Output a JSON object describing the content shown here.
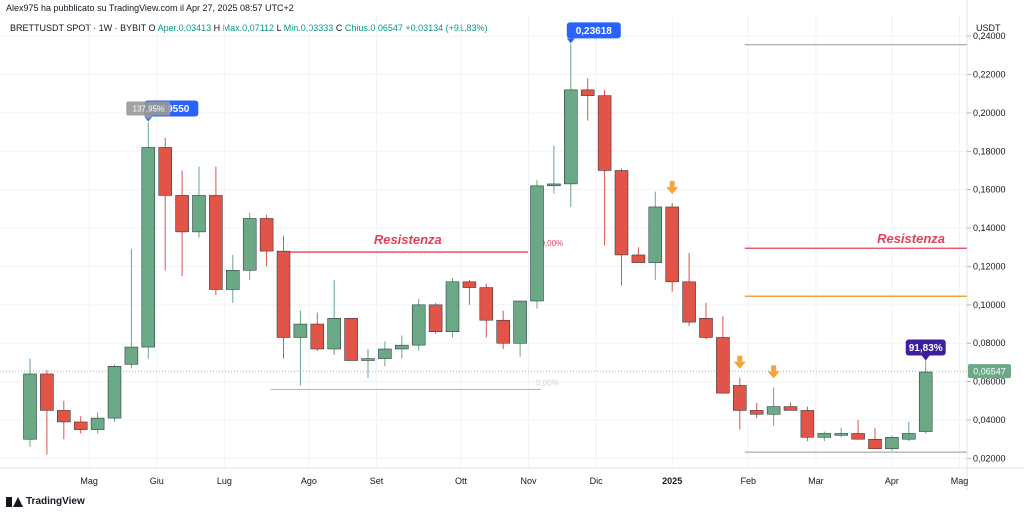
{
  "header": {
    "published_by": "Alex975 ha pubblicato su TradingView.com il Apr 27, 2025 08:57 UTC+2"
  },
  "symbol": {
    "name": "BRETTUSDT SPOT · 1W · BYBIT",
    "open_label": "O",
    "open": "Aper.0,03413",
    "high_label": "H",
    "high": "Max.0,07112",
    "low_label": "L",
    "low": "Min.0,03333",
    "close_label": "C",
    "close": "Chius.0,06547",
    "change": "+0,03134 (+91,83%)"
  },
  "brand": {
    "name": "TradingView",
    "icon": "tradingview-logo-icon"
  },
  "chart_data": {
    "type": "candlestick",
    "currency": "USDT",
    "ylim": [
      0.015,
      0.251
    ],
    "y_ticks": [
      "0,24000",
      "0,22000",
      "0,20000",
      "0,18000",
      "0,16000",
      "0,14000",
      "0,12000",
      "0,10000",
      "0,08000",
      "0,06000",
      "0,04000",
      "0,02000"
    ],
    "y_tick_values": [
      0.24,
      0.22,
      0.2,
      0.18,
      0.16,
      0.14,
      0.12,
      0.1,
      0.08,
      0.06,
      0.04,
      0.02
    ],
    "x_labels": [
      {
        "label": "Mag",
        "index": 3.5
      },
      {
        "label": "Giu",
        "index": 7.5
      },
      {
        "label": "Lug",
        "index": 11.5
      },
      {
        "label": "Ago",
        "index": 16.5
      },
      {
        "label": "Set",
        "index": 20.5
      },
      {
        "label": "Ott",
        "index": 25.5
      },
      {
        "label": "Nov",
        "index": 29.5
      },
      {
        "label": "Dic",
        "index": 33.5
      },
      {
        "label": "2025",
        "index": 38
      },
      {
        "label": "Feb",
        "index": 42.5
      },
      {
        "label": "Mar",
        "index": 46.5
      },
      {
        "label": "Apr",
        "index": 51
      },
      {
        "label": "Mag",
        "index": 55
      }
    ],
    "candles": [
      {
        "o": 0.03,
        "h": 0.072,
        "l": 0.026,
        "c": 0.064
      },
      {
        "o": 0.064,
        "h": 0.066,
        "l": 0.022,
        "c": 0.045
      },
      {
        "o": 0.045,
        "h": 0.05,
        "l": 0.03,
        "c": 0.039
      },
      {
        "o": 0.039,
        "h": 0.042,
        "l": 0.033,
        "c": 0.035
      },
      {
        "o": 0.035,
        "h": 0.044,
        "l": 0.033,
        "c": 0.041
      },
      {
        "o": 0.041,
        "h": 0.069,
        "l": 0.039,
        "c": 0.068
      },
      {
        "o": 0.069,
        "h": 0.129,
        "l": 0.067,
        "c": 0.078
      },
      {
        "o": 0.078,
        "h": 0.195,
        "l": 0.072,
        "c": 0.182
      },
      {
        "o": 0.182,
        "h": 0.187,
        "l": 0.118,
        "c": 0.157
      },
      {
        "o": 0.157,
        "h": 0.17,
        "l": 0.115,
        "c": 0.138
      },
      {
        "o": 0.138,
        "h": 0.172,
        "l": 0.135,
        "c": 0.157
      },
      {
        "o": 0.157,
        "h": 0.172,
        "l": 0.105,
        "c": 0.108
      },
      {
        "o": 0.108,
        "h": 0.126,
        "l": 0.101,
        "c": 0.118
      },
      {
        "o": 0.118,
        "h": 0.148,
        "l": 0.113,
        "c": 0.145
      },
      {
        "o": 0.145,
        "h": 0.147,
        "l": 0.12,
        "c": 0.128
      },
      {
        "o": 0.128,
        "h": 0.136,
        "l": 0.072,
        "c": 0.083
      },
      {
        "o": 0.083,
        "h": 0.097,
        "l": 0.058,
        "c": 0.09
      },
      {
        "o": 0.09,
        "h": 0.096,
        "l": 0.076,
        "c": 0.077
      },
      {
        "o": 0.077,
        "h": 0.113,
        "l": 0.074,
        "c": 0.093
      },
      {
        "o": 0.093,
        "h": 0.093,
        "l": 0.071,
        "c": 0.071
      },
      {
        "o": 0.071,
        "h": 0.077,
        "l": 0.062,
        "c": 0.072
      },
      {
        "o": 0.072,
        "h": 0.081,
        "l": 0.068,
        "c": 0.077
      },
      {
        "o": 0.077,
        "h": 0.084,
        "l": 0.072,
        "c": 0.079
      },
      {
        "o": 0.079,
        "h": 0.103,
        "l": 0.076,
        "c": 0.1
      },
      {
        "o": 0.1,
        "h": 0.101,
        "l": 0.085,
        "c": 0.086
      },
      {
        "o": 0.086,
        "h": 0.114,
        "l": 0.083,
        "c": 0.112
      },
      {
        "o": 0.112,
        "h": 0.113,
        "l": 0.1,
        "c": 0.109
      },
      {
        "o": 0.109,
        "h": 0.111,
        "l": 0.083,
        "c": 0.092
      },
      {
        "o": 0.092,
        "h": 0.097,
        "l": 0.077,
        "c": 0.08
      },
      {
        "o": 0.08,
        "h": 0.102,
        "l": 0.073,
        "c": 0.102
      },
      {
        "o": 0.102,
        "h": 0.165,
        "l": 0.098,
        "c": 0.162
      },
      {
        "o": 0.162,
        "h": 0.183,
        "l": 0.158,
        "c": 0.163
      },
      {
        "o": 0.163,
        "h": 0.236,
        "l": 0.151,
        "c": 0.212
      },
      {
        "o": 0.212,
        "h": 0.218,
        "l": 0.196,
        "c": 0.209
      },
      {
        "o": 0.209,
        "h": 0.212,
        "l": 0.131,
        "c": 0.17
      },
      {
        "o": 0.17,
        "h": 0.171,
        "l": 0.11,
        "c": 0.126
      },
      {
        "o": 0.126,
        "h": 0.13,
        "l": 0.122,
        "c": 0.122
      },
      {
        "o": 0.122,
        "h": 0.159,
        "l": 0.113,
        "c": 0.151
      },
      {
        "o": 0.151,
        "h": 0.153,
        "l": 0.107,
        "c": 0.112
      },
      {
        "o": 0.112,
        "h": 0.127,
        "l": 0.089,
        "c": 0.091
      },
      {
        "o": 0.093,
        "h": 0.101,
        "l": 0.082,
        "c": 0.083
      },
      {
        "o": 0.083,
        "h": 0.094,
        "l": 0.056,
        "c": 0.054
      },
      {
        "o": 0.058,
        "h": 0.062,
        "l": 0.035,
        "c": 0.045
      },
      {
        "o": 0.045,
        "h": 0.049,
        "l": 0.041,
        "c": 0.043
      },
      {
        "o": 0.043,
        "h": 0.057,
        "l": 0.037,
        "c": 0.047
      },
      {
        "o": 0.047,
        "h": 0.049,
        "l": 0.045,
        "c": 0.045
      },
      {
        "o": 0.045,
        "h": 0.047,
        "l": 0.029,
        "c": 0.031
      },
      {
        "o": 0.031,
        "h": 0.034,
        "l": 0.029,
        "c": 0.033
      },
      {
        "o": 0.032,
        "h": 0.036,
        "l": 0.031,
        "c": 0.033
      },
      {
        "o": 0.033,
        "h": 0.04,
        "l": 0.03,
        "c": 0.03
      },
      {
        "o": 0.03,
        "h": 0.036,
        "l": 0.025,
        "c": 0.025
      },
      {
        "o": 0.025,
        "h": 0.032,
        "l": 0.024,
        "c": 0.031
      },
      {
        "o": 0.03,
        "h": 0.039,
        "l": 0.029,
        "c": 0.033
      },
      {
        "o": 0.034,
        "h": 0.071,
        "l": 0.033,
        "c": 0.065
      }
    ],
    "annotations": {
      "high_june": {
        "text": "0,19550",
        "price": 0.1955,
        "index": 7
      },
      "pct_june": {
        "text": "137,95%",
        "index": 7
      },
      "high_nov": {
        "text": "0,23618",
        "price": 0.2362,
        "index": 32
      },
      "pct_latest": {
        "text": "91,83%",
        "index": 53
      },
      "last_price": {
        "text": "0,06547",
        "price": 0.06547
      },
      "fib_50": {
        "text": "50,00%"
      },
      "fib_0": {
        "text": "0,00%"
      },
      "resistance_1": {
        "text": "Resistenza",
        "price": 0.1275
      },
      "resistance_2": {
        "text": "Resistenza",
        "price": 0.1295
      },
      "support_orange_price": 0.1045,
      "top_line_price": 0.2355,
      "low_line_price": 0.0233,
      "fib_0_price": 0.0585,
      "arrow_indices": [
        38,
        42,
        44
      ]
    },
    "colors": {
      "up": "#6aa886",
      "down": "#e05548",
      "resistance": "#e0415a",
      "orange": "#f5a23a",
      "label_blue": "#2962ff",
      "label_purple": "#3d1f9c",
      "label_gray": "#999999",
      "arrow": "#f5a23a"
    }
  }
}
